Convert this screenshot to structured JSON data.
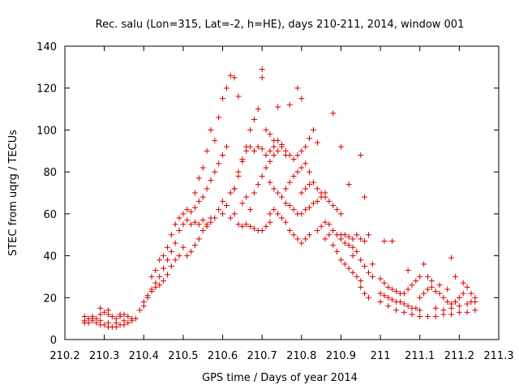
{
  "chart_data": {
    "type": "scatter",
    "title": "Rec. salu (Lon=315, Lat=-2, h=HE), days 210-211, 2014, window 001",
    "xlabel": "GPS time / Days of year 2014",
    "ylabel": "STEC from uqrg / TECUs",
    "xlim": [
      210.2,
      211.3
    ],
    "ylim": [
      0,
      140
    ],
    "xticks": [
      210.2,
      210.3,
      210.4,
      210.5,
      210.6,
      210.7,
      210.8,
      210.9,
      211,
      211.1,
      211.2,
      211.3
    ],
    "xtick_labels": [
      "210.2",
      "210.3",
      "210.4",
      "210.5",
      "210.6",
      "210.7",
      "210.8",
      "210.9",
      "211",
      "211.1",
      "211.2",
      "211.3"
    ],
    "yticks": [
      0,
      20,
      40,
      60,
      80,
      100,
      120,
      140
    ],
    "ytick_labels": [
      "0",
      "20",
      "40",
      "60",
      "80",
      "100",
      "120",
      "140"
    ],
    "grid": false,
    "legend": "none",
    "marker": "plus",
    "color": "#d40000",
    "points": [
      [
        210.25,
        11
      ],
      [
        210.26,
        10
      ],
      [
        210.27,
        11
      ],
      [
        210.28,
        10
      ],
      [
        210.29,
        12
      ],
      [
        210.3,
        13
      ],
      [
        210.31,
        12
      ],
      [
        210.32,
        11
      ],
      [
        210.33,
        10
      ],
      [
        210.34,
        11
      ],
      [
        210.35,
        12
      ],
      [
        210.36,
        11
      ],
      [
        210.37,
        10
      ],
      [
        210.25,
        8
      ],
      [
        210.26,
        8
      ],
      [
        210.27,
        9
      ],
      [
        210.28,
        8
      ],
      [
        210.29,
        7
      ],
      [
        210.3,
        7
      ],
      [
        210.31,
        6
      ],
      [
        210.32,
        6
      ],
      [
        210.33,
        6
      ],
      [
        210.34,
        7
      ],
      [
        210.35,
        7
      ],
      [
        210.36,
        8
      ],
      [
        210.37,
        9
      ],
      [
        210.38,
        10
      ],
      [
        210.25,
        9
      ],
      [
        210.27,
        10
      ],
      [
        210.29,
        9
      ],
      [
        210.31,
        8
      ],
      [
        210.33,
        8
      ],
      [
        210.35,
        9
      ],
      [
        210.29,
        15
      ],
      [
        210.31,
        14
      ],
      [
        210.34,
        12
      ],
      [
        210.39,
        14
      ],
      [
        210.4,
        18
      ],
      [
        210.41,
        21
      ],
      [
        210.42,
        24
      ],
      [
        210.43,
        27
      ],
      [
        210.44,
        30
      ],
      [
        210.45,
        34
      ],
      [
        210.46,
        38
      ],
      [
        210.47,
        42
      ],
      [
        210.48,
        46
      ],
      [
        210.49,
        52
      ],
      [
        210.4,
        16
      ],
      [
        210.41,
        20
      ],
      [
        210.42,
        23
      ],
      [
        210.43,
        25
      ],
      [
        210.44,
        26
      ],
      [
        210.45,
        28
      ],
      [
        210.46,
        31
      ],
      [
        210.47,
        35
      ],
      [
        210.48,
        38
      ],
      [
        210.49,
        40
      ],
      [
        210.42,
        30
      ],
      [
        210.43,
        33
      ],
      [
        210.44,
        38
      ],
      [
        210.45,
        40
      ],
      [
        210.46,
        44
      ],
      [
        210.47,
        50
      ],
      [
        210.48,
        55
      ],
      [
        210.49,
        58
      ],
      [
        210.5,
        60
      ],
      [
        210.5,
        44
      ],
      [
        210.51,
        40
      ],
      [
        210.52,
        42
      ],
      [
        210.53,
        45
      ],
      [
        210.54,
        48
      ],
      [
        210.55,
        52
      ],
      [
        210.56,
        55
      ],
      [
        210.57,
        58
      ],
      [
        210.5,
        55
      ],
      [
        210.51,
        57
      ],
      [
        210.52,
        55
      ],
      [
        210.53,
        56
      ],
      [
        210.54,
        55
      ],
      [
        210.55,
        57
      ],
      [
        210.56,
        54
      ],
      [
        210.57,
        56
      ],
      [
        210.58,
        58
      ],
      [
        210.59,
        62
      ],
      [
        210.6,
        66
      ],
      [
        210.51,
        62
      ],
      [
        210.52,
        61
      ],
      [
        210.53,
        63
      ],
      [
        210.54,
        66
      ],
      [
        210.55,
        68
      ],
      [
        210.56,
        72
      ],
      [
        210.57,
        76
      ],
      [
        210.58,
        80
      ],
      [
        210.59,
        84
      ],
      [
        210.6,
        88
      ],
      [
        210.61,
        92
      ],
      [
        210.53,
        70
      ],
      [
        210.54,
        77
      ],
      [
        210.55,
        82
      ],
      [
        210.56,
        90
      ],
      [
        210.57,
        100
      ],
      [
        210.58,
        95
      ],
      [
        210.59,
        106
      ],
      [
        210.6,
        115
      ],
      [
        210.61,
        120
      ],
      [
        210.62,
        126
      ],
      [
        210.63,
        125
      ],
      [
        210.64,
        116
      ],
      [
        210.6,
        60
      ],
      [
        210.61,
        64
      ],
      [
        210.62,
        70
      ],
      [
        210.63,
        72
      ],
      [
        210.64,
        78
      ],
      [
        210.65,
        85
      ],
      [
        210.66,
        92
      ],
      [
        210.67,
        100
      ],
      [
        210.68,
        105
      ],
      [
        210.69,
        110
      ],
      [
        210.62,
        58
      ],
      [
        210.63,
        60
      ],
      [
        210.64,
        55
      ],
      [
        210.65,
        54
      ],
      [
        210.66,
        55
      ],
      [
        210.67,
        54
      ],
      [
        210.68,
        53
      ],
      [
        210.69,
        52
      ],
      [
        210.7,
        52
      ],
      [
        210.71,
        54
      ],
      [
        210.72,
        56
      ],
      [
        210.63,
        72
      ],
      [
        210.64,
        80
      ],
      [
        210.65,
        86
      ],
      [
        210.66,
        90
      ],
      [
        210.67,
        92
      ],
      [
        210.68,
        90
      ],
      [
        210.69,
        92
      ],
      [
        210.7,
        91
      ],
      [
        210.71,
        88
      ],
      [
        210.72,
        90
      ],
      [
        210.73,
        92
      ],
      [
        210.65,
        65
      ],
      [
        210.66,
        68
      ],
      [
        210.67,
        62
      ],
      [
        210.68,
        70
      ],
      [
        210.69,
        74
      ],
      [
        210.7,
        78
      ],
      [
        210.71,
        82
      ],
      [
        210.72,
        85
      ],
      [
        210.73,
        88
      ],
      [
        210.74,
        90
      ],
      [
        210.7,
        129
      ],
      [
        210.7,
        125
      ],
      [
        210.71,
        100
      ],
      [
        210.72,
        98
      ],
      [
        210.73,
        95
      ],
      [
        210.74,
        111
      ],
      [
        210.75,
        92
      ],
      [
        210.76,
        88
      ],
      [
        210.77,
        112
      ],
      [
        210.79,
        120
      ],
      [
        210.8,
        115
      ],
      [
        210.72,
        60
      ],
      [
        210.73,
        62
      ],
      [
        210.74,
        60
      ],
      [
        210.75,
        58
      ],
      [
        210.76,
        56
      ],
      [
        210.77,
        52
      ],
      [
        210.78,
        50
      ],
      [
        210.79,
        48
      ],
      [
        210.8,
        46
      ],
      [
        210.81,
        48
      ],
      [
        210.82,
        50
      ],
      [
        210.72,
        75
      ],
      [
        210.73,
        72
      ],
      [
        210.74,
        70
      ],
      [
        210.75,
        68
      ],
      [
        210.76,
        72
      ],
      [
        210.77,
        75
      ],
      [
        210.78,
        78
      ],
      [
        210.79,
        80
      ],
      [
        210.8,
        82
      ],
      [
        210.81,
        84
      ],
      [
        210.82,
        80
      ],
      [
        210.74,
        95
      ],
      [
        210.75,
        93
      ],
      [
        210.76,
        90
      ],
      [
        210.77,
        88
      ],
      [
        210.78,
        86
      ],
      [
        210.79,
        88
      ],
      [
        210.8,
        90
      ],
      [
        210.81,
        92
      ],
      [
        210.82,
        96
      ],
      [
        210.83,
        100
      ],
      [
        210.84,
        94
      ],
      [
        210.76,
        65
      ],
      [
        210.77,
        64
      ],
      [
        210.78,
        62
      ],
      [
        210.79,
        60
      ],
      [
        210.8,
        60
      ],
      [
        210.81,
        62
      ],
      [
        210.82,
        63
      ],
      [
        210.83,
        65
      ],
      [
        210.84,
        66
      ],
      [
        210.85,
        68
      ],
      [
        210.86,
        70
      ],
      [
        210.8,
        70
      ],
      [
        210.81,
        72
      ],
      [
        210.82,
        74
      ],
      [
        210.83,
        75
      ],
      [
        210.84,
        72
      ],
      [
        210.85,
        70
      ],
      [
        210.86,
        68
      ],
      [
        210.87,
        66
      ],
      [
        210.88,
        64
      ],
      [
        210.89,
        62
      ],
      [
        210.9,
        60
      ],
      [
        210.84,
        52
      ],
      [
        210.85,
        54
      ],
      [
        210.86,
        56
      ],
      [
        210.87,
        55
      ],
      [
        210.88,
        52
      ],
      [
        210.89,
        50
      ],
      [
        210.9,
        48
      ],
      [
        210.91,
        46
      ],
      [
        210.92,
        45
      ],
      [
        210.93,
        44
      ],
      [
        210.86,
        48
      ],
      [
        210.87,
        50
      ],
      [
        210.88,
        45
      ],
      [
        210.89,
        42
      ],
      [
        210.9,
        38
      ],
      [
        210.91,
        36
      ],
      [
        210.92,
        34
      ],
      [
        210.93,
        32
      ],
      [
        210.94,
        30
      ],
      [
        210.95,
        28
      ],
      [
        210.88,
        108
      ],
      [
        210.9,
        92
      ],
      [
        210.92,
        74
      ],
      [
        210.95,
        88
      ],
      [
        210.96,
        68
      ],
      [
        210.9,
        50
      ],
      [
        210.91,
        50
      ],
      [
        210.92,
        49
      ],
      [
        210.93,
        48
      ],
      [
        210.94,
        50
      ],
      [
        210.95,
        48
      ],
      [
        210.96,
        47
      ],
      [
        210.97,
        50
      ],
      [
        210.93,
        40
      ],
      [
        210.94,
        42
      ],
      [
        210.95,
        38
      ],
      [
        210.96,
        35
      ],
      [
        210.97,
        32
      ],
      [
        210.98,
        30
      ],
      [
        210.95,
        25
      ],
      [
        210.96,
        22
      ],
      [
        210.97,
        20
      ],
      [
        210.98,
        36
      ],
      [
        211.0,
        29
      ],
      [
        211.01,
        27
      ],
      [
        211.02,
        25
      ],
      [
        211.03,
        24
      ],
      [
        211.04,
        23
      ],
      [
        211.05,
        22
      ],
      [
        211.06,
        22
      ],
      [
        211.07,
        24
      ],
      [
        211.08,
        26
      ],
      [
        211.09,
        28
      ],
      [
        211.1,
        30
      ],
      [
        211.01,
        47
      ],
      [
        211.03,
        47
      ],
      [
        211.07,
        33
      ],
      [
        211.11,
        36
      ],
      [
        211.18,
        39
      ],
      [
        211.0,
        22
      ],
      [
        211.01,
        21
      ],
      [
        211.02,
        20
      ],
      [
        211.03,
        19
      ],
      [
        211.04,
        18
      ],
      [
        211.05,
        18
      ],
      [
        211.06,
        17
      ],
      [
        211.07,
        16
      ],
      [
        211.08,
        15
      ],
      [
        211.09,
        15
      ],
      [
        211.1,
        14
      ],
      [
        211.0,
        18
      ],
      [
        211.02,
        16
      ],
      [
        211.04,
        14
      ],
      [
        211.06,
        13
      ],
      [
        211.08,
        12
      ],
      [
        211.1,
        11
      ],
      [
        211.12,
        11
      ],
      [
        211.14,
        11
      ],
      [
        211.16,
        12
      ],
      [
        211.18,
        12
      ],
      [
        211.2,
        13
      ],
      [
        211.22,
        13
      ],
      [
        211.24,
        14
      ],
      [
        211.1,
        20
      ],
      [
        211.11,
        22
      ],
      [
        211.12,
        24
      ],
      [
        211.13,
        25
      ],
      [
        211.14,
        23
      ],
      [
        211.15,
        22
      ],
      [
        211.16,
        20
      ],
      [
        211.17,
        18
      ],
      [
        211.18,
        17
      ],
      [
        211.19,
        18
      ],
      [
        211.12,
        30
      ],
      [
        211.13,
        28
      ],
      [
        211.15,
        26
      ],
      [
        211.17,
        24
      ],
      [
        211.19,
        30
      ],
      [
        211.21,
        27
      ],
      [
        211.22,
        25
      ],
      [
        211.23,
        22
      ],
      [
        211.24,
        20
      ],
      [
        211.14,
        15
      ],
      [
        211.16,
        14
      ],
      [
        211.18,
        15
      ],
      [
        211.2,
        16
      ],
      [
        211.22,
        17
      ],
      [
        211.24,
        18
      ],
      [
        211.2,
        20
      ],
      [
        211.21,
        22
      ],
      [
        211.23,
        18
      ]
    ]
  }
}
